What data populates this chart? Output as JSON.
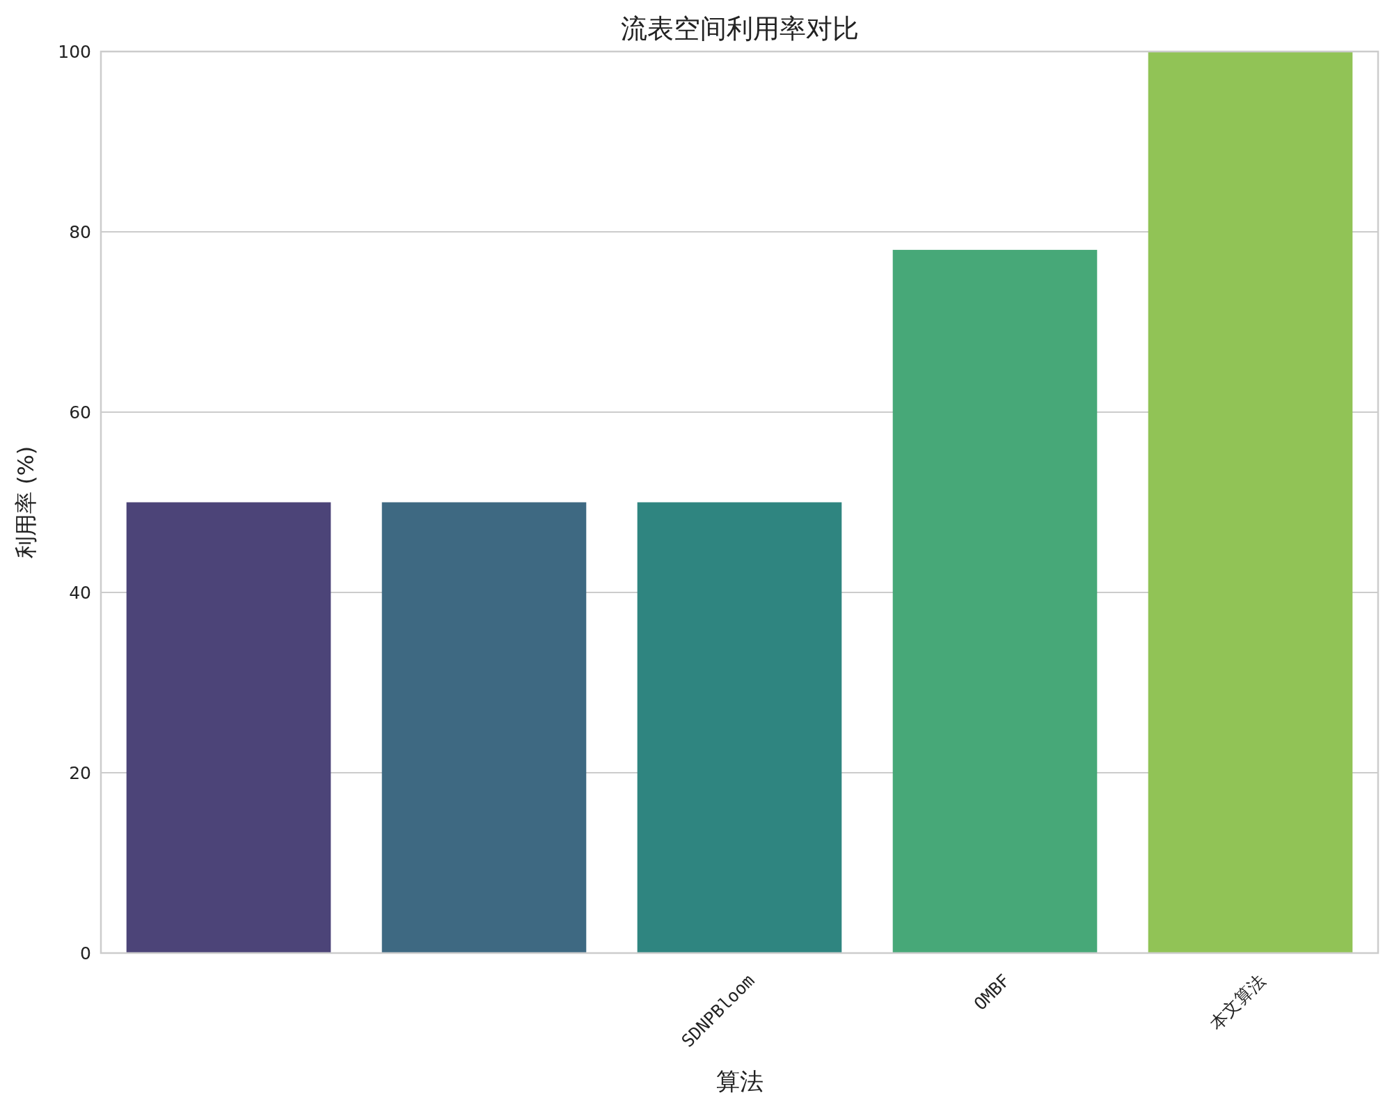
{
  "chart_data": {
    "type": "bar",
    "title": "流表空间利用率对比",
    "xlabel": "算法",
    "ylabel": "利用率 (%)",
    "categories": [
      null,
      null,
      "SDNPBloom",
      "OMBF",
      "本文算法"
    ],
    "values": [
      50,
      50,
      50,
      78,
      100
    ],
    "colors": [
      "#4c4478",
      "#3e6982",
      "#2f8580",
      "#47a878",
      "#91c356"
    ],
    "ylim": [
      0,
      100
    ],
    "yticks": [
      0,
      20,
      40,
      60,
      80,
      100
    ],
    "grid": "y"
  }
}
